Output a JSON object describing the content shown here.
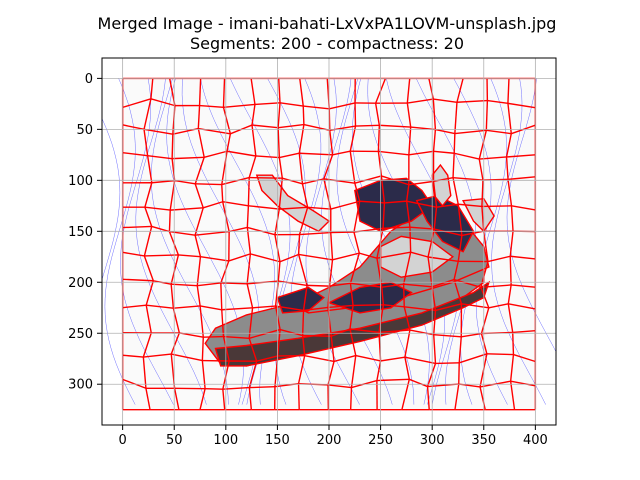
{
  "chart_data": {
    "type": "image",
    "title": "Merged Image - imani-bahati-LxVxPA1LOVM-unsplash.jpg",
    "subtitle": "Segments: 200 - compactness: 20",
    "xlabel": "",
    "ylabel": "",
    "image_width": 400,
    "image_height": 325,
    "xlim": [
      -20,
      420
    ],
    "ylim": [
      340,
      -20
    ],
    "xticks": [
      0,
      50,
      100,
      150,
      200,
      250,
      300,
      350,
      400
    ],
    "yticks": [
      0,
      50,
      100,
      150,
      200,
      250,
      300
    ],
    "grid": true,
    "colors": {
      "background": "#fafafa",
      "segment_boundary": "#ff0000",
      "contour_lines": "#3333ff",
      "grid": "#b0b0b0",
      "shoe_light": "#d3d3d3",
      "shoe_mid": "#8c8c8c",
      "shoe_dark": "#2b2b4a",
      "shoe_brown": "#4a3838"
    },
    "regions": [
      {
        "name": "toe-cap",
        "shade": "shoe_mid",
        "points": [
          [
            80,
            260
          ],
          [
            90,
            245
          ],
          [
            120,
            232
          ],
          [
            160,
            222
          ],
          [
            200,
            218
          ],
          [
            250,
            205
          ],
          [
            300,
            190
          ],
          [
            330,
            185
          ],
          [
            350,
            180
          ],
          [
            350,
            200
          ],
          [
            330,
            215
          ],
          [
            300,
            235
          ],
          [
            250,
            250
          ],
          [
            200,
            262
          ],
          [
            160,
            272
          ],
          [
            120,
            282
          ],
          [
            95,
            280
          ]
        ]
      },
      {
        "name": "upper-body",
        "shade": "shoe_mid",
        "points": [
          [
            165,
            222
          ],
          [
            200,
            205
          ],
          [
            230,
            185
          ],
          [
            260,
            150
          ],
          [
            290,
            130
          ],
          [
            300,
            125
          ],
          [
            330,
            140
          ],
          [
            350,
            165
          ],
          [
            355,
            185
          ],
          [
            320,
            200
          ],
          [
            270,
            215
          ],
          [
            220,
            225
          ],
          [
            180,
            230
          ]
        ]
      },
      {
        "name": "heel-top",
        "shade": "shoe_dark",
        "points": [
          [
            225,
            110
          ],
          [
            250,
            100
          ],
          [
            275,
            98
          ],
          [
            290,
            110
          ],
          [
            300,
            125
          ],
          [
            280,
            140
          ],
          [
            250,
            150
          ],
          [
            230,
            140
          ]
        ]
      },
      {
        "name": "laces",
        "shade": "shoe_light",
        "points": [
          [
            250,
            165
          ],
          [
            270,
            155
          ],
          [
            300,
            160
          ],
          [
            320,
            175
          ],
          [
            300,
            190
          ],
          [
            270,
            195
          ],
          [
            250,
            185
          ]
        ]
      },
      {
        "name": "collar",
        "shade": "shoe_dark",
        "points": [
          [
            285,
            120
          ],
          [
            305,
            115
          ],
          [
            325,
            125
          ],
          [
            340,
            150
          ],
          [
            330,
            170
          ],
          [
            310,
            160
          ],
          [
            295,
            140
          ]
        ]
      },
      {
        "name": "tongue",
        "shade": "shoe_light",
        "points": [
          [
            300,
            95
          ],
          [
            308,
            85
          ],
          [
            315,
            95
          ],
          [
            318,
            115
          ],
          [
            310,
            125
          ],
          [
            302,
            115
          ]
        ]
      },
      {
        "name": "sole",
        "shade": "shoe_brown",
        "points": [
          [
            90,
            265
          ],
          [
            120,
            262
          ],
          [
            170,
            255
          ],
          [
            230,
            245
          ],
          [
            290,
            230
          ],
          [
            340,
            210
          ],
          [
            355,
            200
          ],
          [
            350,
            215
          ],
          [
            330,
            225
          ],
          [
            290,
            242
          ],
          [
            230,
            258
          ],
          [
            170,
            272
          ],
          [
            120,
            282
          ],
          [
            95,
            282
          ]
        ]
      },
      {
        "name": "lace-strap",
        "shade": "shoe_light",
        "points": [
          [
            130,
            95
          ],
          [
            145,
            95
          ],
          [
            160,
            115
          ],
          [
            185,
            130
          ],
          [
            200,
            140
          ],
          [
            190,
            150
          ],
          [
            170,
            140
          ],
          [
            150,
            125
          ],
          [
            135,
            110
          ]
        ]
      },
      {
        "name": "heel-tab",
        "shade": "shoe_light",
        "points": [
          [
            330,
            120
          ],
          [
            350,
            118
          ],
          [
            360,
            135
          ],
          [
            350,
            150
          ],
          [
            340,
            140
          ]
        ]
      },
      {
        "name": "midfoot-shadow",
        "shade": "shoe_dark",
        "points": [
          [
            200,
            220
          ],
          [
            230,
            205
          ],
          [
            260,
            200
          ],
          [
            280,
            210
          ],
          [
            260,
            225
          ],
          [
            230,
            230
          ]
        ]
      },
      {
        "name": "forefoot-shadow",
        "shade": "shoe_dark",
        "points": [
          [
            150,
            215
          ],
          [
            180,
            205
          ],
          [
            195,
            215
          ],
          [
            180,
            228
          ],
          [
            155,
            230
          ]
        ]
      }
    ]
  }
}
